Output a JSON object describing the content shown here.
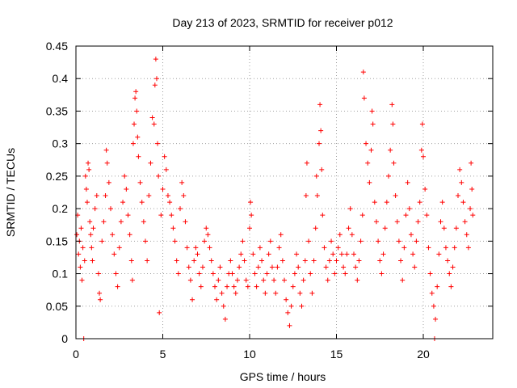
{
  "chart_data": {
    "type": "scatter",
    "title": "Day 213 of 2023, SRMTID for receiver p012",
    "xlabel": "GPS time / hours",
    "ylabel": "SRMTID / TECUs",
    "xlim": [
      0,
      24
    ],
    "ylim": [
      0,
      0.45
    ],
    "x_ticks": [
      0,
      5,
      10,
      15,
      20
    ],
    "x_tick_labels": [
      "0",
      "5",
      "10",
      "15",
      "20"
    ],
    "y_ticks": [
      0,
      0.05,
      0.1,
      0.15,
      0.2,
      0.25,
      0.3,
      0.35,
      0.4,
      0.45
    ],
    "y_tick_labels": [
      "0",
      "0.05",
      "0.1",
      "0.15",
      "0.2",
      "0.25",
      "0.3",
      "0.35",
      "0.4",
      "0.45"
    ],
    "grid": true,
    "marker": "plus",
    "color": "#ff0000",
    "series": [
      {
        "name": "SRMTID",
        "points": [
          [
            0.05,
            0.16
          ],
          [
            0.1,
            0.19
          ],
          [
            0.15,
            0.13
          ],
          [
            0.2,
            0.15
          ],
          [
            0.25,
            0.11
          ],
          [
            0.3,
            0.17
          ],
          [
            0.35,
            0.09
          ],
          [
            0.4,
            0.14
          ],
          [
            0.45,
            0.0
          ],
          [
            0.5,
            0.12
          ],
          [
            0.55,
            0.25
          ],
          [
            0.6,
            0.23
          ],
          [
            0.65,
            0.21
          ],
          [
            0.7,
            0.27
          ],
          [
            0.75,
            0.26
          ],
          [
            0.8,
            0.18
          ],
          [
            0.85,
            0.16
          ],
          [
            0.9,
            0.14
          ],
          [
            0.95,
            0.12
          ],
          [
            1.0,
            0.17
          ],
          [
            1.1,
            0.2
          ],
          [
            1.2,
            0.22
          ],
          [
            1.3,
            0.1
          ],
          [
            1.35,
            0.07
          ],
          [
            1.4,
            0.06
          ],
          [
            1.5,
            0.15
          ],
          [
            1.6,
            0.18
          ],
          [
            1.7,
            0.22
          ],
          [
            1.75,
            0.29
          ],
          [
            1.8,
            0.27
          ],
          [
            1.9,
            0.24
          ],
          [
            2.0,
            0.2
          ],
          [
            2.1,
            0.16
          ],
          [
            2.2,
            0.13
          ],
          [
            2.3,
            0.1
          ],
          [
            2.4,
            0.08
          ],
          [
            2.5,
            0.14
          ],
          [
            2.6,
            0.18
          ],
          [
            2.7,
            0.21
          ],
          [
            2.8,
            0.25
          ],
          [
            2.9,
            0.23
          ],
          [
            3.0,
            0.19
          ],
          [
            3.1,
            0.16
          ],
          [
            3.2,
            0.12
          ],
          [
            3.25,
            0.09
          ],
          [
            3.3,
            0.3
          ],
          [
            3.35,
            0.33
          ],
          [
            3.4,
            0.37
          ],
          [
            3.45,
            0.38
          ],
          [
            3.5,
            0.35
          ],
          [
            3.55,
            0.31
          ],
          [
            3.6,
            0.28
          ],
          [
            3.7,
            0.24
          ],
          [
            3.8,
            0.21
          ],
          [
            3.9,
            0.18
          ],
          [
            4.0,
            0.15
          ],
          [
            4.1,
            0.12
          ],
          [
            4.2,
            0.22
          ],
          [
            4.3,
            0.27
          ],
          [
            4.4,
            0.34
          ],
          [
            4.5,
            0.33
          ],
          [
            4.55,
            0.39
          ],
          [
            4.6,
            0.43
          ],
          [
            4.65,
            0.4
          ],
          [
            4.7,
            0.3
          ],
          [
            4.75,
            0.25
          ],
          [
            4.8,
            0.04
          ],
          [
            4.9,
            0.19
          ],
          [
            5.0,
            0.23
          ],
          [
            5.1,
            0.28
          ],
          [
            5.2,
            0.26
          ],
          [
            5.3,
            0.22
          ],
          [
            5.4,
            0.21
          ],
          [
            5.5,
            0.19
          ],
          [
            5.6,
            0.17
          ],
          [
            5.7,
            0.15
          ],
          [
            5.8,
            0.12
          ],
          [
            5.9,
            0.1
          ],
          [
            6.0,
            0.2
          ],
          [
            6.1,
            0.24
          ],
          [
            6.2,
            0.22
          ],
          [
            6.3,
            0.18
          ],
          [
            6.4,
            0.14
          ],
          [
            6.5,
            0.11
          ],
          [
            6.6,
            0.09
          ],
          [
            6.7,
            0.06
          ],
          [
            6.8,
            0.12
          ],
          [
            6.9,
            0.14
          ],
          [
            7.0,
            0.13
          ],
          [
            7.1,
            0.1
          ],
          [
            7.2,
            0.08
          ],
          [
            7.3,
            0.11
          ],
          [
            7.4,
            0.15
          ],
          [
            7.5,
            0.17
          ],
          [
            7.6,
            0.16
          ],
          [
            7.7,
            0.14
          ],
          [
            7.8,
            0.12
          ],
          [
            7.9,
            0.1
          ],
          [
            8.0,
            0.08
          ],
          [
            8.1,
            0.06
          ],
          [
            8.2,
            0.09
          ],
          [
            8.3,
            0.11
          ],
          [
            8.4,
            0.07
          ],
          [
            8.5,
            0.05
          ],
          [
            8.6,
            0.03
          ],
          [
            8.7,
            0.08
          ],
          [
            8.8,
            0.1
          ],
          [
            8.9,
            0.12
          ],
          [
            9.0,
            0.1
          ],
          [
            9.1,
            0.08
          ],
          [
            9.2,
            0.07
          ],
          [
            9.3,
            0.09
          ],
          [
            9.4,
            0.11
          ],
          [
            9.5,
            0.13
          ],
          [
            9.6,
            0.15
          ],
          [
            9.7,
            0.12
          ],
          [
            9.8,
            0.09
          ],
          [
            9.9,
            0.08
          ],
          [
            10.0,
            0.17
          ],
          [
            10.05,
            0.21
          ],
          [
            10.1,
            0.19
          ],
          [
            10.2,
            0.13
          ],
          [
            10.3,
            0.1
          ],
          [
            10.4,
            0.08
          ],
          [
            10.5,
            0.11
          ],
          [
            10.6,
            0.14
          ],
          [
            10.7,
            0.12
          ],
          [
            10.8,
            0.09
          ],
          [
            10.9,
            0.07
          ],
          [
            11.0,
            0.1
          ],
          [
            11.1,
            0.13
          ],
          [
            11.2,
            0.15
          ],
          [
            11.3,
            0.11
          ],
          [
            11.4,
            0.09
          ],
          [
            11.5,
            0.07
          ],
          [
            11.6,
            0.11
          ],
          [
            11.7,
            0.14
          ],
          [
            11.8,
            0.16
          ],
          [
            11.9,
            0.12
          ],
          [
            12.0,
            0.09
          ],
          [
            12.1,
            0.06
          ],
          [
            12.2,
            0.04
          ],
          [
            12.3,
            0.02
          ],
          [
            12.4,
            0.05
          ],
          [
            12.5,
            0.08
          ],
          [
            12.6,
            0.1
          ],
          [
            12.7,
            0.13
          ],
          [
            12.8,
            0.11
          ],
          [
            12.9,
            0.07
          ],
          [
            13.0,
            0.05
          ],
          [
            13.1,
            0.09
          ],
          [
            13.2,
            0.12
          ],
          [
            13.25,
            0.22
          ],
          [
            13.3,
            0.27
          ],
          [
            13.4,
            0.15
          ],
          [
            13.5,
            0.1
          ],
          [
            13.6,
            0.07
          ],
          [
            13.7,
            0.12
          ],
          [
            13.8,
            0.17
          ],
          [
            13.85,
            0.25
          ],
          [
            13.9,
            0.22
          ],
          [
            14.0,
            0.3
          ],
          [
            14.05,
            0.36
          ],
          [
            14.1,
            0.32
          ],
          [
            14.15,
            0.26
          ],
          [
            14.2,
            0.19
          ],
          [
            14.3,
            0.14
          ],
          [
            14.4,
            0.11
          ],
          [
            14.5,
            0.09
          ],
          [
            14.6,
            0.12
          ],
          [
            14.7,
            0.15
          ],
          [
            14.8,
            0.13
          ],
          [
            14.9,
            0.1
          ],
          [
            15.0,
            0.12
          ],
          [
            15.1,
            0.14
          ],
          [
            15.2,
            0.16
          ],
          [
            15.3,
            0.13
          ],
          [
            15.4,
            0.11
          ],
          [
            15.5,
            0.1
          ],
          [
            15.6,
            0.13
          ],
          [
            15.7,
            0.17
          ],
          [
            15.8,
            0.2
          ],
          [
            15.9,
            0.16
          ],
          [
            16.0,
            0.13
          ],
          [
            16.1,
            0.11
          ],
          [
            16.2,
            0.09
          ],
          [
            16.3,
            0.12
          ],
          [
            16.4,
            0.15
          ],
          [
            16.5,
            0.19
          ],
          [
            16.55,
            0.41
          ],
          [
            16.6,
            0.37
          ],
          [
            16.7,
            0.3
          ],
          [
            16.8,
            0.27
          ],
          [
            16.9,
            0.24
          ],
          [
            17.0,
            0.29
          ],
          [
            17.05,
            0.35
          ],
          [
            17.1,
            0.33
          ],
          [
            17.2,
            0.21
          ],
          [
            17.3,
            0.18
          ],
          [
            17.4,
            0.15
          ],
          [
            17.5,
            0.12
          ],
          [
            17.6,
            0.1
          ],
          [
            17.7,
            0.13
          ],
          [
            17.8,
            0.17
          ],
          [
            17.9,
            0.21
          ],
          [
            18.0,
            0.25
          ],
          [
            18.1,
            0.29
          ],
          [
            18.2,
            0.36
          ],
          [
            18.25,
            0.33
          ],
          [
            18.3,
            0.27
          ],
          [
            18.4,
            0.22
          ],
          [
            18.5,
            0.18
          ],
          [
            18.6,
            0.15
          ],
          [
            18.7,
            0.12
          ],
          [
            18.8,
            0.09
          ],
          [
            18.9,
            0.14
          ],
          [
            19.0,
            0.19
          ],
          [
            19.1,
            0.24
          ],
          [
            19.2,
            0.2
          ],
          [
            19.3,
            0.16
          ],
          [
            19.4,
            0.13
          ],
          [
            19.5,
            0.11
          ],
          [
            19.6,
            0.15
          ],
          [
            19.7,
            0.18
          ],
          [
            19.8,
            0.21
          ],
          [
            19.9,
            0.29
          ],
          [
            19.95,
            0.33
          ],
          [
            20.0,
            0.28
          ],
          [
            20.1,
            0.23
          ],
          [
            20.2,
            0.19
          ],
          [
            20.3,
            0.14
          ],
          [
            20.4,
            0.1
          ],
          [
            20.5,
            0.07
          ],
          [
            20.6,
            0.05
          ],
          [
            20.65,
            0.0
          ],
          [
            20.7,
            0.03
          ],
          [
            20.8,
            0.08
          ],
          [
            20.9,
            0.13
          ],
          [
            21.0,
            0.18
          ],
          [
            21.1,
            0.21
          ],
          [
            21.2,
            0.17
          ],
          [
            21.3,
            0.14
          ],
          [
            21.4,
            0.12
          ],
          [
            21.5,
            0.1
          ],
          [
            21.6,
            0.08
          ],
          [
            21.7,
            0.11
          ],
          [
            21.8,
            0.14
          ],
          [
            21.9,
            0.17
          ],
          [
            22.0,
            0.22
          ],
          [
            22.1,
            0.26
          ],
          [
            22.2,
            0.24
          ],
          [
            22.3,
            0.21
          ],
          [
            22.4,
            0.18
          ],
          [
            22.5,
            0.16
          ],
          [
            22.6,
            0.14
          ],
          [
            22.7,
            0.2
          ],
          [
            22.75,
            0.27
          ],
          [
            22.8,
            0.23
          ],
          [
            22.85,
            0.19
          ]
        ]
      }
    ]
  }
}
